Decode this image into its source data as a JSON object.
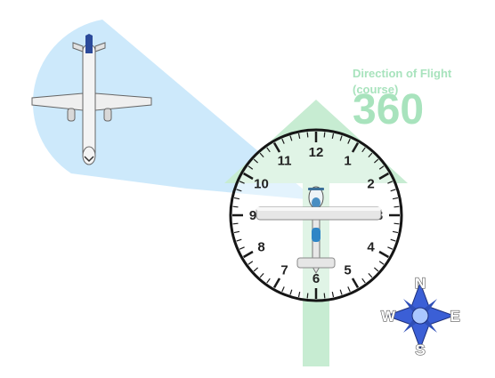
{
  "course": {
    "label_line1": "Direction of Flight",
    "label_line2": "(course)",
    "value": "360"
  },
  "clock": {
    "numbers": [
      "12",
      "1",
      "2",
      "3",
      "4",
      "5",
      "6",
      "7",
      "8",
      "9",
      "10",
      "11"
    ]
  },
  "compass": {
    "north": "N",
    "east": "E",
    "south": "S",
    "west": "W"
  },
  "colors": {
    "arrow": "#c7ecd2",
    "beam": "#cde9fb",
    "text": "#a8e3bd",
    "compass_fill": "#3b5fd6"
  }
}
